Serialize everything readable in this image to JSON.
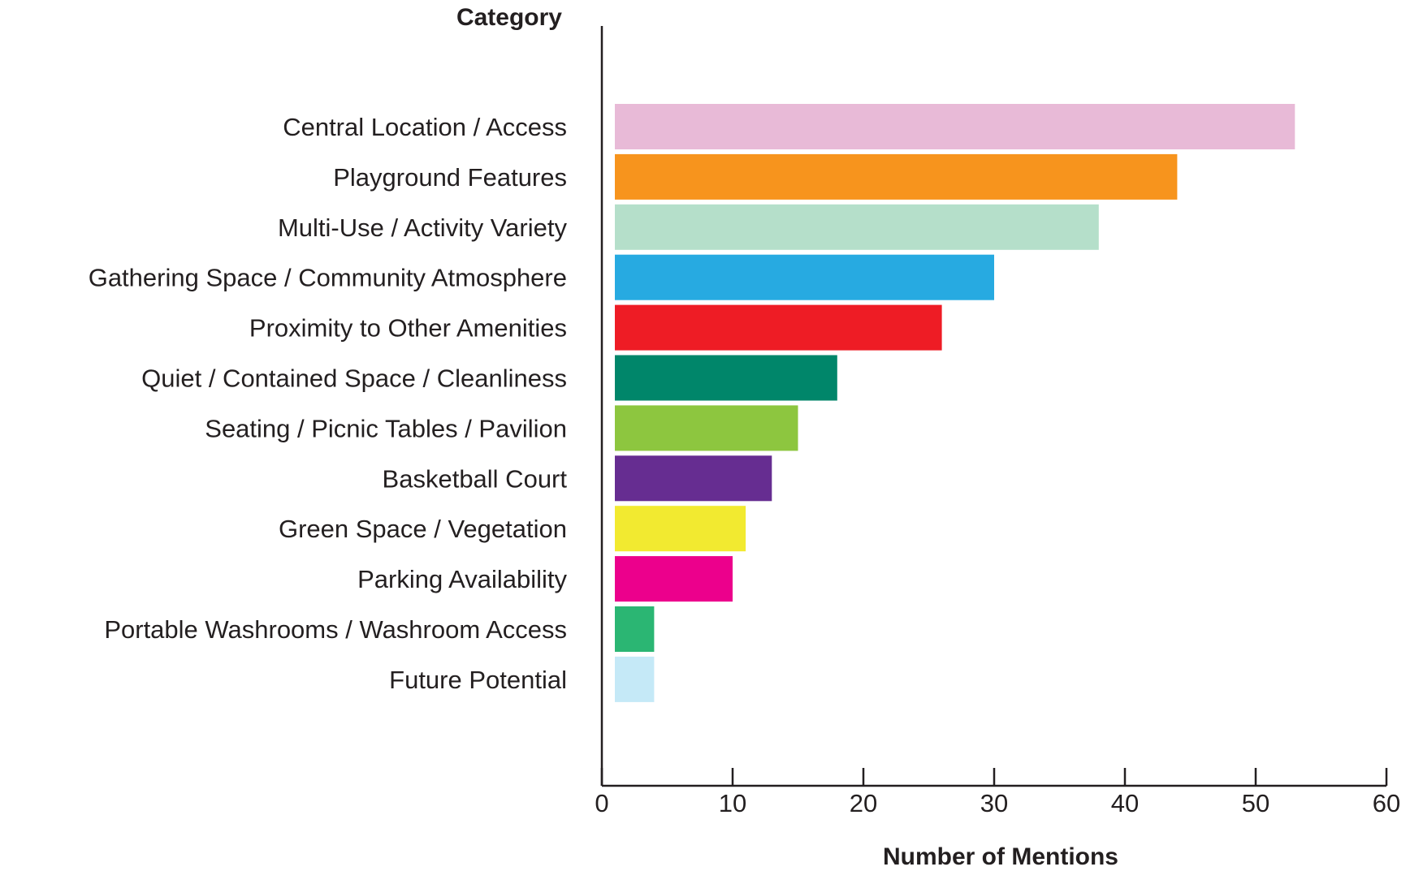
{
  "chart_data": {
    "type": "bar",
    "orientation": "horizontal",
    "ylabel": "Category",
    "xlabel": "Number of Mentions",
    "xlim": [
      0,
      60
    ],
    "xticks": [
      0,
      10,
      20,
      30,
      40,
      50,
      60
    ],
    "grid": false,
    "legend": "none",
    "categories": [
      "Central Location / Access",
      "Playground Features",
      "Multi-Use / Activity Variety",
      "Gathering Space / Community Atmosphere",
      "Proximity to Other Amenities",
      "Quiet / Contained Space / Cleanliness",
      "Seating / Picnic Tables / Pavilion",
      "Basketball Court",
      "Green Space / Vegetation",
      "Parking Availability",
      "Portable Washrooms / Washroom Access",
      "Future Potential"
    ],
    "values": [
      53,
      44,
      38,
      30,
      26,
      18,
      15,
      13,
      11,
      10,
      4,
      4
    ],
    "colors": [
      "#e8bad7",
      "#f7941d",
      "#b5dfca",
      "#27aae1",
      "#ee1c25",
      "#00866a",
      "#8dc63f",
      "#662d91",
      "#f2ea30",
      "#ec008c",
      "#2bb673",
      "#c5e9f7"
    ],
    "axis_color": "#231f20"
  }
}
